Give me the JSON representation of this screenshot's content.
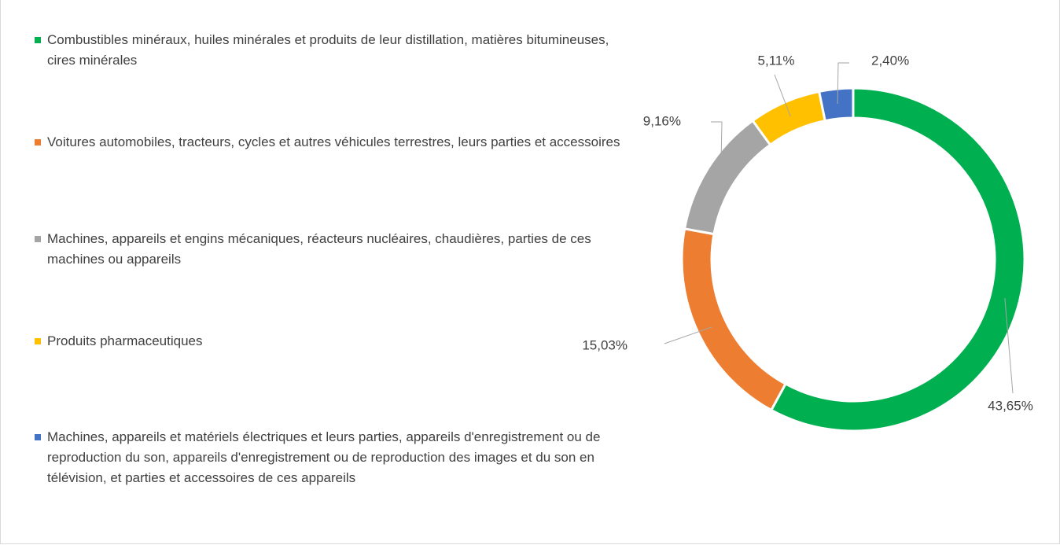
{
  "chart_data": {
    "type": "donut",
    "categories": [
      "Combustibles minéraux, huiles minérales et produits de leur distillation, matières bitumineuses, cires minérales",
      "Voitures automobiles, tracteurs, cycles et autres véhicules terrestres, leurs parties et accessoires",
      "Machines, appareils et engins mécaniques, réacteurs nucléaires, chaudières, parties de ces machines ou appareils",
      "Produits pharmaceutiques",
      "Machines, appareils et matériels électriques et leurs parties, appareils d'enregistrement ou de reproduction du son, appareils d'enregistrement ou de reproduction des images et du son en télévision, et parties et accessoires de ces appareils"
    ],
    "values": [
      43.65,
      15.03,
      9.16,
      5.11,
      2.4
    ],
    "value_labels": [
      "43,65%",
      "15,03%",
      "9,16%",
      "5,11%",
      "2,40%"
    ],
    "colors": [
      "#00b050",
      "#ed7d31",
      "#a5a5a5",
      "#ffc000",
      "#4472c4"
    ]
  }
}
